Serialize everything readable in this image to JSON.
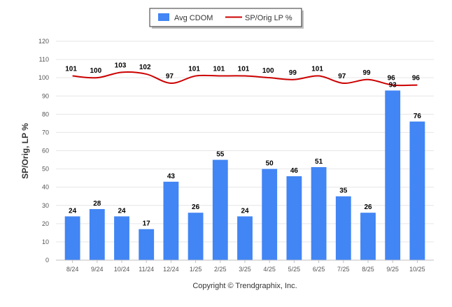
{
  "chart_data": {
    "type": "bar",
    "categories": [
      "8/24",
      "9/24",
      "10/24",
      "11/24",
      "12/24",
      "1/25",
      "2/25",
      "3/25",
      "4/25",
      "5/25",
      "6/25",
      "7/25",
      "8/25",
      "9/25",
      "10/25"
    ],
    "series": [
      {
        "name": "Avg CDOM",
        "type": "bar",
        "color": "#4285f4",
        "values": [
          24,
          28,
          24,
          17,
          43,
          26,
          55,
          24,
          50,
          46,
          51,
          35,
          26,
          93,
          76
        ]
      },
      {
        "name": "SP/Orig LP %",
        "type": "line",
        "color": "#cc0000",
        "values": [
          101,
          100,
          103,
          102,
          97,
          101,
          101,
          101,
          100,
          99,
          101,
          97,
          99,
          96,
          96
        ]
      }
    ],
    "title": "",
    "xlabel": "",
    "ylabel": "SP/Orig, LP %",
    "ylim": [
      0,
      120
    ],
    "yticks": [
      0,
      10,
      20,
      30,
      40,
      50,
      60,
      70,
      80,
      90,
      100,
      110,
      120
    ],
    "grid": true,
    "legend": "top-center",
    "credit": "Copyright © Trendgraphix, Inc."
  }
}
